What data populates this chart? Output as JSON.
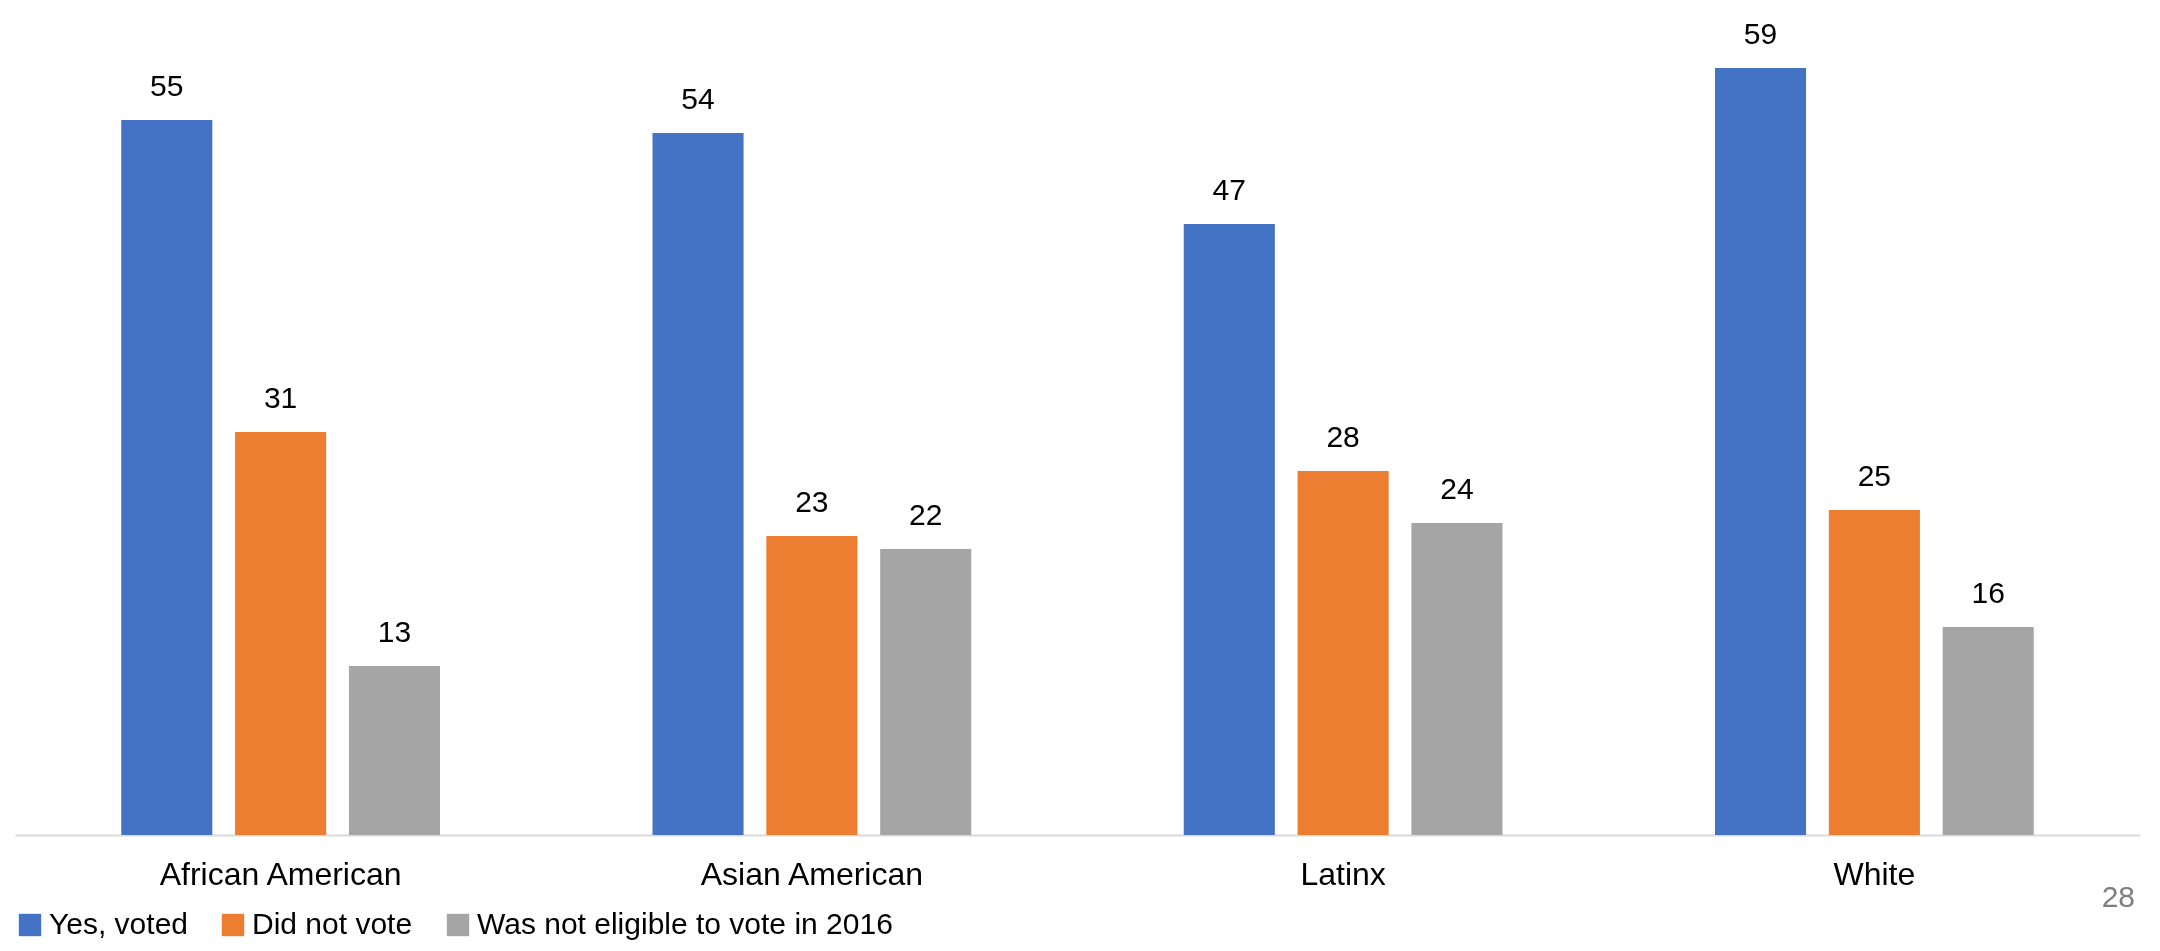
{
  "chart_data": {
    "type": "bar",
    "categories": [
      "African American",
      "Asian American",
      "Latinx",
      "White"
    ],
    "series": [
      {
        "name": "Yes, voted",
        "color": "#4472c4",
        "values": [
          55,
          54,
          47,
          59
        ]
      },
      {
        "name": "Did not vote",
        "color": "#ed7d31",
        "values": [
          31,
          23,
          28,
          25
        ]
      },
      {
        "name": "Was not eligible to vote in 2016",
        "color": "#a5a5a5",
        "values": [
          13,
          22,
          24,
          16
        ]
      }
    ],
    "data_labels": true,
    "legend": "bottom",
    "annotations": [
      "28"
    ]
  }
}
